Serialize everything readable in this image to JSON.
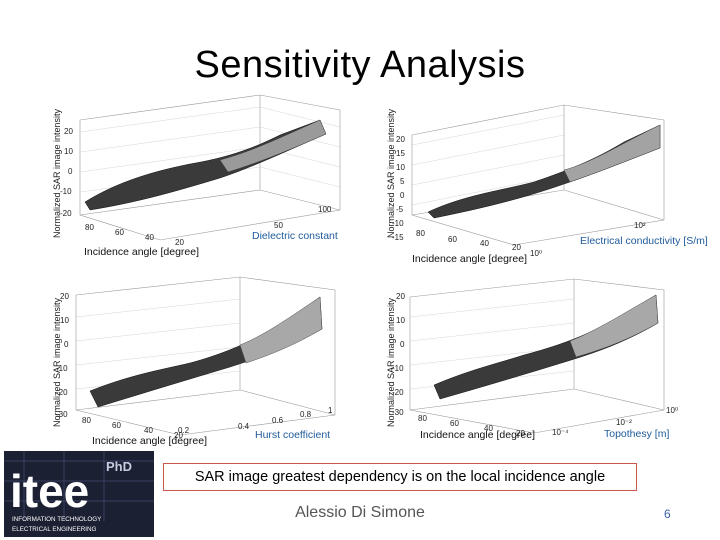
{
  "title": "Sensitivity Analysis",
  "y_axis_label": "Normalized SAR image intensity",
  "panels": [
    {
      "x_label": "Incidence angle [degree]",
      "param_label": "Dielectric constant",
      "z_ticks": [
        "20",
        "10",
        "0",
        "-10",
        "-20"
      ],
      "x_ticks": [
        "80",
        "60",
        "40",
        "20"
      ],
      "p_ticks": [
        "50",
        "100"
      ]
    },
    {
      "x_label": "Incidence angle [degree]",
      "param_label": "Electrical conductivity [S/m]",
      "z_ticks": [
        "20",
        "15",
        "10",
        "5",
        "0",
        "-5",
        "-10",
        "-15"
      ],
      "x_ticks": [
        "80",
        "60",
        "40",
        "20"
      ],
      "p_ticks": [
        "10⁰",
        "10²"
      ]
    },
    {
      "x_label": "Incidence angle [degree]",
      "param_label": "Hurst coefficient",
      "z_ticks": [
        "20",
        "10",
        "0",
        "-10",
        "-20",
        "-30"
      ],
      "x_ticks": [
        "80",
        "60",
        "40",
        "20"
      ],
      "p_ticks": [
        "0.2",
        "0.4",
        "0.6",
        "0.8",
        "1"
      ]
    },
    {
      "x_label": "Incidence angle [degree]",
      "param_label": "Topothesy [m]",
      "z_ticks": [
        "20",
        "10",
        "0",
        "-10",
        "-20",
        "-30"
      ],
      "x_ticks": [
        "80",
        "60",
        "40",
        "20"
      ],
      "p_ticks": [
        "10⁻⁴",
        "10⁻²",
        "10⁰"
      ]
    }
  ],
  "note": {
    "prefix": "SAR image greatest dependency is on the ",
    "emphasis": "local incidence angle"
  },
  "author": "Alessio Di Simone",
  "page_number": "6",
  "logo": {
    "main": "itee",
    "badge": "PhD",
    "line1": "INFORMATION TECHNOLOGY",
    "line2": "ELECTRICAL ENGINEERING"
  },
  "colors": {
    "accent_blue": "#1f5b9b",
    "note_border": "#c9574f",
    "logo_bg": "#1b2033",
    "logo_text": "#ffffff"
  }
}
